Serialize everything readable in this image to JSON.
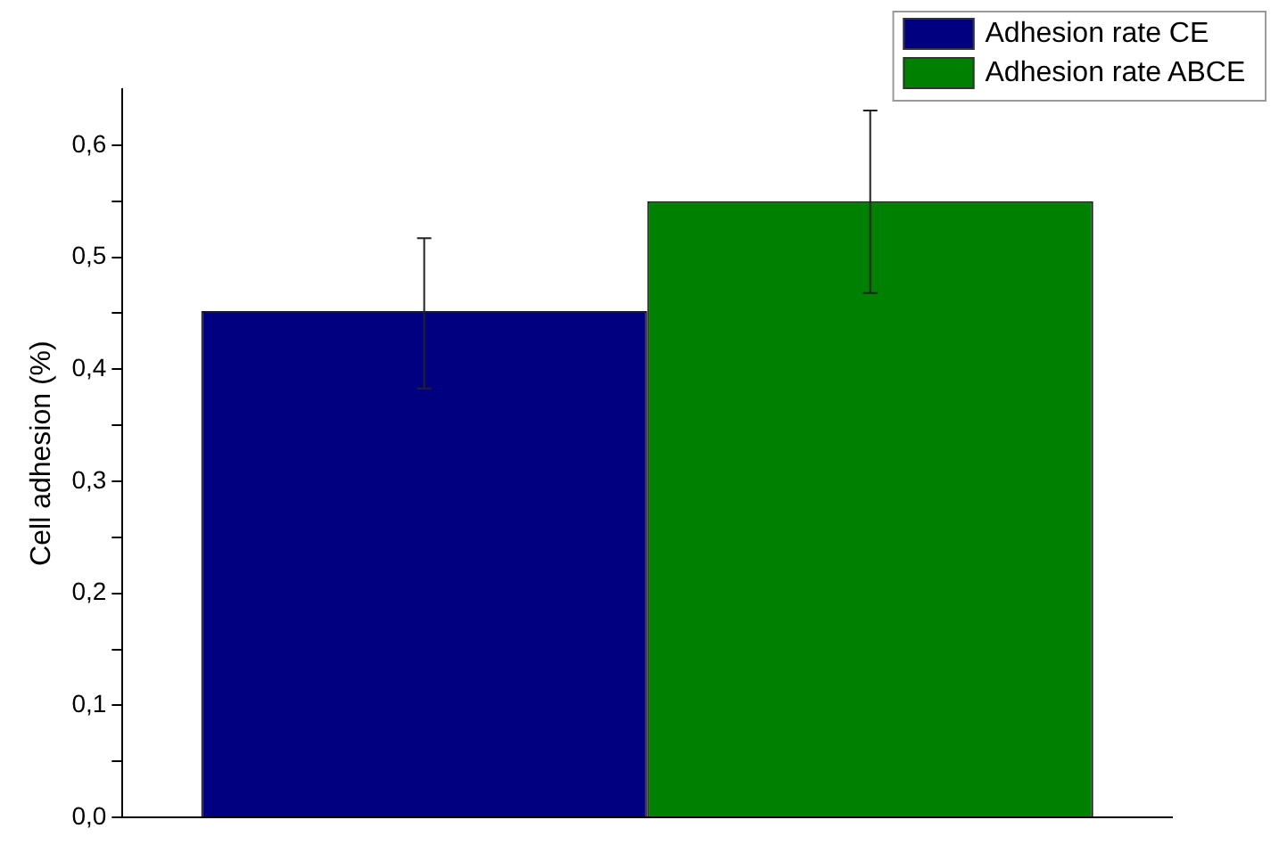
{
  "chart_data": {
    "type": "bar",
    "ylabel": "Cell adhesion (%)",
    "categories": [
      null
    ],
    "series": [
      {
        "name": "Adhesion rate CE",
        "color": "#000080",
        "values": [
          0.452
        ],
        "errors": [
          [
            0.383,
            0.517
          ]
        ]
      },
      {
        "name": "Adhesion rate ABCE",
        "color": "#008000",
        "values": [
          0.55
        ],
        "errors": [
          [
            0.468,
            0.631
          ]
        ]
      }
    ],
    "ylim": [
      0,
      0.65
    ],
    "yticks": [
      {
        "value": 0,
        "label": "0,0"
      },
      {
        "value": 0.05,
        "label": null
      },
      {
        "value": 0.1,
        "label": "0,1"
      },
      {
        "value": 0.15,
        "label": null
      },
      {
        "value": 0.2,
        "label": "0,2"
      },
      {
        "value": 0.25,
        "label": null
      },
      {
        "value": 0.3,
        "label": "0,3"
      },
      {
        "value": 0.35,
        "label": null
      },
      {
        "value": 0.4,
        "label": "0,4"
      },
      {
        "value": 0.45,
        "label": null
      },
      {
        "value": 0.5,
        "label": "0,5"
      },
      {
        "value": 0.55,
        "label": null
      },
      {
        "value": 0.6,
        "label": "0,6"
      }
    ],
    "grid": false,
    "legend": "top right"
  }
}
